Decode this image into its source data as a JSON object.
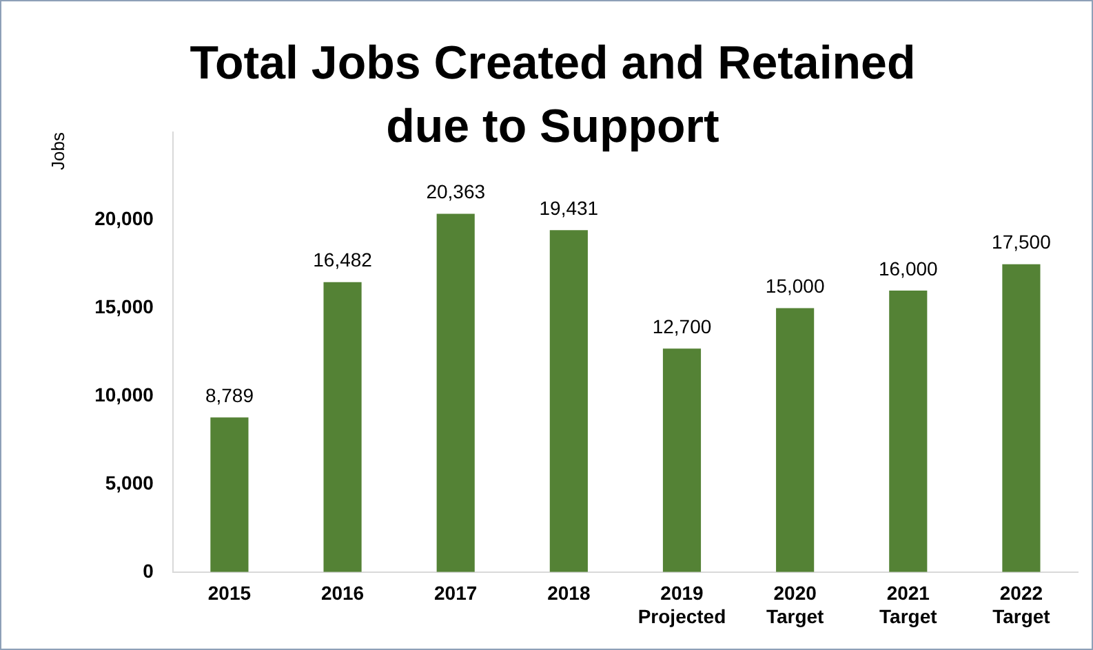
{
  "chart_data": {
    "type": "bar",
    "title": "Total Jobs Created and Retained due to Support",
    "ylabel": "Jobs",
    "categories": [
      "2015",
      "2016",
      "2017",
      "2018",
      "2019\nProjected",
      "2020\nTarget",
      "2021\nTarget",
      "2022\nTarget"
    ],
    "values": [
      8789,
      16482,
      20363,
      19431,
      12700,
      15000,
      16000,
      17500
    ],
    "value_labels": [
      "8,789",
      "16,482",
      "20,363",
      "19,431",
      "12,700",
      "15,000",
      "16,000",
      "17,500"
    ],
    "color": "#548235",
    "ylim": [
      0,
      25000
    ],
    "yticks": [
      {
        "value": 0,
        "label": "0"
      },
      {
        "value": 5000,
        "label": "5,000"
      },
      {
        "value": 10000,
        "label": "10,000"
      },
      {
        "value": 15000,
        "label": "15,000"
      },
      {
        "value": 20000,
        "label": "20,000"
      }
    ],
    "grid": false,
    "legend": false
  }
}
